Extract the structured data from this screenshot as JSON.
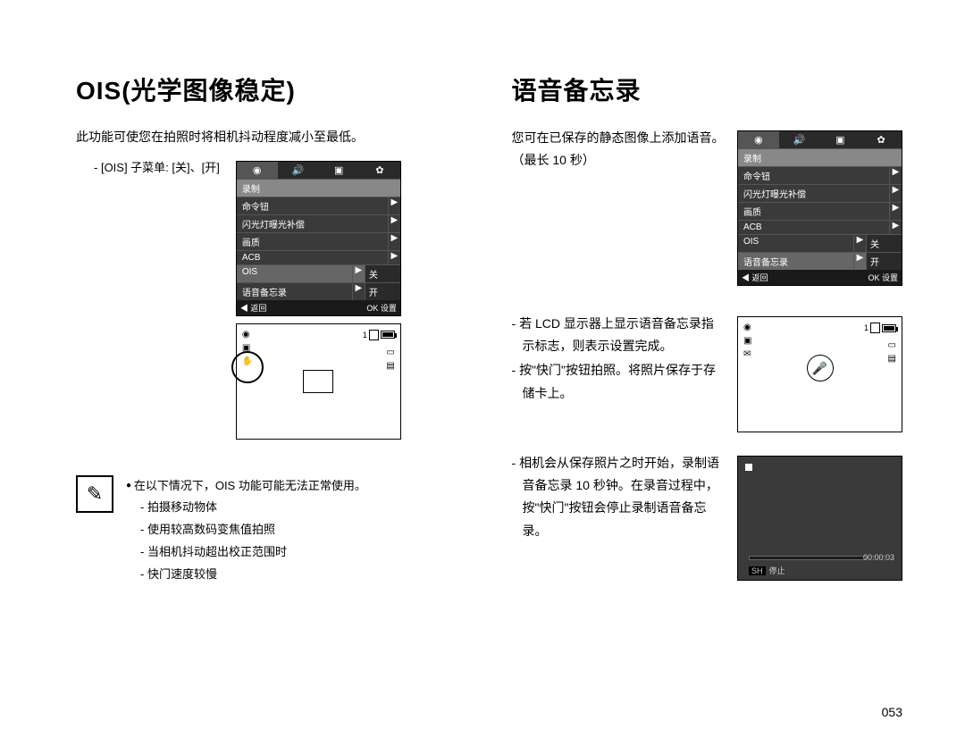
{
  "pageNumber": "053",
  "left": {
    "title": "OIS(光学图像稳定)",
    "intro": "此功能可使您在拍照时将相机抖动程度减小至最低。",
    "submenu": "[OIS] 子菜单: [关]、[开]",
    "menu": {
      "header": "录制",
      "rows": [
        {
          "label": "命令钮",
          "arrow": "▶",
          "val": ""
        },
        {
          "label": "闪光灯曝光补偿",
          "arrow": "▶",
          "val": ""
        },
        {
          "label": "画质",
          "arrow": "▶",
          "val": ""
        },
        {
          "label": "ACB",
          "arrow": "▶",
          "val": ""
        },
        {
          "label": "OIS",
          "arrow": "▶",
          "val": "关",
          "sel": true
        },
        {
          "label": "语音备忘录",
          "arrow": "▶",
          "val": "开"
        }
      ],
      "footerLeft": "◀ 返回",
      "footerRight": "OK 设置"
    },
    "lcdTopRight": "1",
    "note": {
      "lead": "在以下情况下，OIS 功能可能无法正常使用。",
      "items": [
        "拍摄移动物体",
        "使用较高数码变焦值拍照",
        "当相机抖动超出校正范围时",
        "快门速度较慢"
      ]
    }
  },
  "right": {
    "title": "语音备忘录",
    "intro": "您可在已保存的静态图像上添加语音。（最长 10 秒）",
    "menu": {
      "header": "录制",
      "rows": [
        {
          "label": "命令钮",
          "arrow": "▶",
          "val": ""
        },
        {
          "label": "闪光灯曝光补偿",
          "arrow": "▶",
          "val": ""
        },
        {
          "label": "画质",
          "arrow": "▶",
          "val": ""
        },
        {
          "label": "ACB",
          "arrow": "▶",
          "val": ""
        },
        {
          "label": "OIS",
          "arrow": "▶",
          "val": "关"
        },
        {
          "label": "语音备忘录",
          "arrow": "▶",
          "val": "开",
          "sel": true
        }
      ],
      "footerLeft": "◀ 返回",
      "footerRight": "OK 设置"
    },
    "bullet1": "若 LCD 显示器上显示语音备忘录指示标志，则表示设置完成。",
    "bullet2": "按\"快门\"按钮拍照。将照片保存于存储卡上。",
    "bullet3": "相机会从保存照片之时开始，录制语音备忘录 10 秒钟。在录音过程中，按\"快门\"按钮会停止录制语音备忘录。",
    "lcdTopRight": "1",
    "recTime": "00:00:03",
    "recStop": "停止",
    "recSH": "SH"
  }
}
